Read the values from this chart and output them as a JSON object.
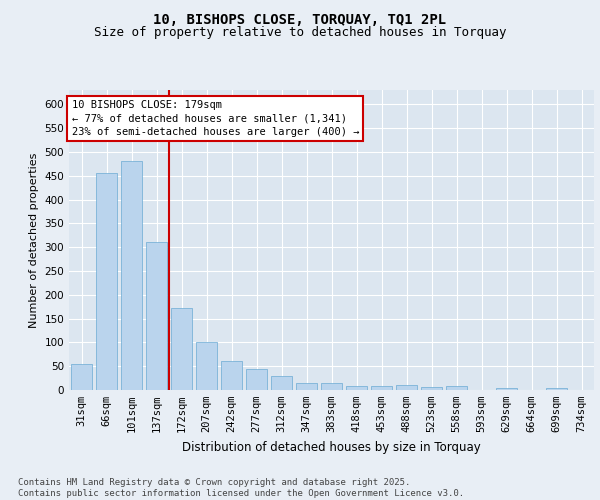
{
  "title_line1": "10, BISHOPS CLOSE, TORQUAY, TQ1 2PL",
  "title_line2": "Size of property relative to detached houses in Torquay",
  "xlabel": "Distribution of detached houses by size in Torquay",
  "ylabel": "Number of detached properties",
  "categories": [
    "31sqm",
    "66sqm",
    "101sqm",
    "137sqm",
    "172sqm",
    "207sqm",
    "242sqm",
    "277sqm",
    "312sqm",
    "347sqm",
    "383sqm",
    "418sqm",
    "453sqm",
    "488sqm",
    "523sqm",
    "558sqm",
    "593sqm",
    "629sqm",
    "664sqm",
    "699sqm",
    "734sqm"
  ],
  "values": [
    55,
    455,
    480,
    310,
    172,
    100,
    60,
    44,
    30,
    14,
    14,
    8,
    8,
    10,
    7,
    8,
    0,
    5,
    0,
    4,
    0
  ],
  "bar_color": "#bad4ed",
  "bar_edge_color": "#6aaad4",
  "background_color": "#dce6f0",
  "fig_background_color": "#e8eef5",
  "grid_color": "#ffffff",
  "vline_color": "#cc0000",
  "vline_x": 3.5,
  "annotation_text": "10 BISHOPS CLOSE: 179sqm\n← 77% of detached houses are smaller (1,341)\n23% of semi-detached houses are larger (400) →",
  "annotation_box_color": "#ffffff",
  "annotation_box_edge_color": "#cc0000",
  "ylim": [
    0,
    630
  ],
  "yticks": [
    0,
    50,
    100,
    150,
    200,
    250,
    300,
    350,
    400,
    450,
    500,
    550,
    600
  ],
  "footer_text": "Contains HM Land Registry data © Crown copyright and database right 2025.\nContains public sector information licensed under the Open Government Licence v3.0.",
  "title_fontsize": 10,
  "subtitle_fontsize": 9,
  "axis_label_fontsize": 8.5,
  "tick_fontsize": 7.5,
  "annotation_fontsize": 7.5,
  "footer_fontsize": 6.5,
  "ylabel_fontsize": 8
}
